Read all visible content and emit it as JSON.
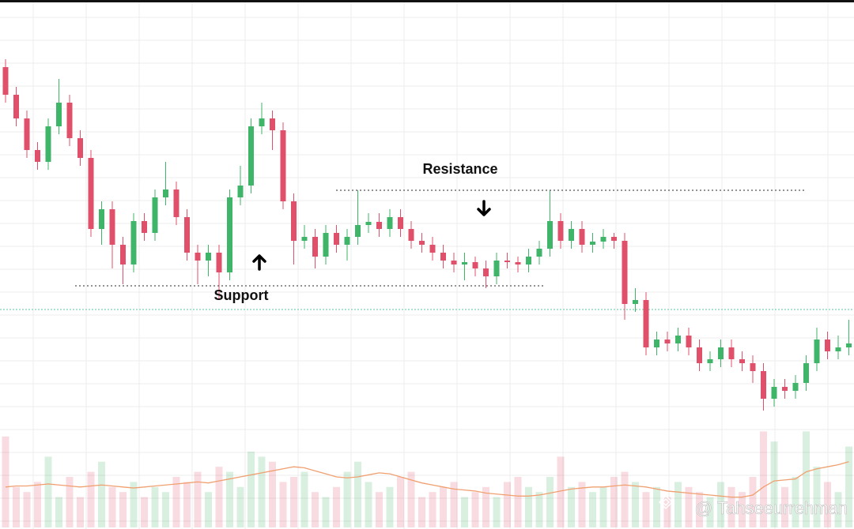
{
  "chart_data": {
    "type": "candlestick",
    "up_color": "#3fb56a",
    "down_color": "#e0506a",
    "ylim": [
      0,
      100
    ],
    "grid": true,
    "open": [
      95,
      88,
      82,
      74,
      71,
      80,
      86,
      77,
      72,
      54,
      59,
      50,
      45,
      56,
      53,
      62,
      64,
      57,
      48,
      46,
      48,
      43,
      62,
      65,
      80,
      82,
      79,
      61,
      51,
      52,
      47,
      53,
      50,
      52,
      55,
      55.8,
      54,
      57,
      54,
      51,
      50,
      48,
      46,
      45,
      45.6,
      44,
      42,
      46,
      45.6,
      45,
      47,
      49,
      56,
      51,
      54,
      50,
      50.8,
      52,
      51,
      35,
      36,
      24,
      26,
      25,
      27,
      24,
      20,
      21,
      24,
      21,
      20,
      18,
      11,
      14,
      13,
      15,
      20,
      26,
      23,
      24
    ],
    "high": [
      97,
      90,
      84,
      76,
      82,
      92,
      88,
      79,
      74,
      61,
      61,
      52,
      58,
      58,
      64,
      71,
      66,
      59,
      50,
      50,
      50,
      64,
      70,
      82,
      86,
      84,
      81,
      63,
      55,
      54,
      55,
      55,
      54,
      63.8,
      58,
      58,
      59,
      59,
      56,
      53,
      52,
      50,
      48,
      48,
      47,
      46,
      48,
      48,
      47,
      49,
      51,
      63.8,
      58,
      56,
      56,
      53,
      54,
      53,
      53,
      39,
      38,
      28,
      28,
      29,
      29,
      26,
      23,
      26,
      26,
      23,
      22,
      20,
      16,
      16,
      17,
      22,
      29,
      28,
      27,
      31
    ],
    "low": [
      86,
      80,
      72,
      69,
      69,
      78,
      75,
      70,
      52,
      50,
      44,
      40,
      43,
      51,
      51,
      60,
      55,
      46,
      40,
      42,
      36,
      41,
      60,
      63,
      78,
      74,
      59,
      45,
      49,
      44,
      45,
      48,
      46,
      50,
      53,
      52,
      52,
      52,
      49,
      48,
      46,
      44,
      43,
      41,
      42,
      39,
      40,
      44,
      43,
      43,
      45,
      47,
      49,
      49,
      48,
      48,
      49,
      49,
      31,
      33,
      22,
      22,
      23,
      23,
      22,
      18,
      18,
      19,
      19,
      18,
      15,
      8,
      9,
      11,
      11,
      13,
      18,
      21,
      21,
      22
    ],
    "close": [
      88,
      82,
      74,
      71,
      80,
      86,
      77,
      72,
      54,
      59,
      50,
      45,
      56,
      53,
      62,
      64,
      57,
      48,
      46,
      48,
      43,
      62,
      65,
      80,
      82,
      79,
      61,
      51,
      52,
      47,
      53,
      50,
      52,
      55,
      55.8,
      54,
      57,
      54,
      51,
      50,
      48,
      46,
      45,
      45.6,
      44,
      42,
      46,
      45.6,
      45,
      47,
      49,
      56,
      51,
      54,
      50,
      50.8,
      52,
      51,
      35,
      36,
      24,
      26,
      25,
      27,
      24,
      20,
      21,
      24,
      21,
      20,
      18,
      11,
      14,
      13,
      15,
      20,
      26,
      23,
      24,
      25
    ],
    "volume": {
      "y2lim": [
        0,
        100
      ],
      "values": [
        90,
        40,
        35,
        45,
        70,
        30,
        50,
        30,
        55,
        65,
        40,
        35,
        45,
        30,
        40,
        35,
        50,
        45,
        55,
        35,
        60,
        55,
        40,
        75,
        70,
        65,
        45,
        50,
        55,
        35,
        30,
        40,
        55,
        65,
        45,
        35,
        40,
        50,
        55,
        30,
        35,
        40,
        45,
        30,
        35,
        40,
        30,
        45,
        50,
        40,
        35,
        50,
        70,
        40,
        45,
        35,
        40,
        50,
        55,
        45,
        35,
        40,
        30,
        45,
        40,
        35,
        30,
        45,
        40,
        35,
        50,
        95,
        85,
        40,
        50,
        95,
        60,
        45,
        35,
        80
      ],
      "ma": [
        40,
        41,
        41,
        42,
        43,
        42,
        41,
        40,
        41,
        42,
        41,
        40,
        39,
        40,
        41,
        42,
        43,
        44,
        45,
        44,
        46,
        48,
        50,
        52,
        54,
        56,
        58,
        60,
        59,
        56,
        53,
        50,
        49,
        50,
        52,
        54,
        53,
        50,
        47,
        44,
        42,
        40,
        38,
        37,
        36,
        34,
        33,
        32,
        31,
        31,
        32,
        34,
        36,
        38,
        39,
        40,
        40,
        41,
        42,
        41,
        40,
        38,
        36,
        35,
        34,
        33,
        32,
        31,
        30,
        30,
        32,
        40,
        46,
        47,
        48,
        55,
        58,
        60,
        62,
        65
      ],
      "ma_color": "#f0a070"
    },
    "price_line": {
      "value": 33.6,
      "color": "#7fd3b0"
    },
    "annotations": [
      {
        "label": "Support",
        "value": 39.6,
        "arrow": "up"
      },
      {
        "label": "Resistance",
        "value": 63.8,
        "arrow": "down"
      }
    ],
    "watermark": "@ Tahseeurrehman"
  }
}
